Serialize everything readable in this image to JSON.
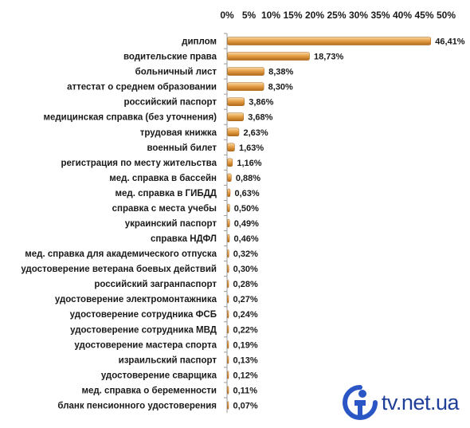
{
  "chart_data": {
    "type": "bar",
    "orientation": "horizontal",
    "categories": [
      "диплом",
      "водительские права",
      "больничный лист",
      "аттестат о среднем образовании",
      "российский паспорт",
      "медицинская справка (без уточнения)",
      "трудовая книжка",
      "военный билет",
      "регистрация по месту жительства",
      "мед. справка в бассейн",
      "мед. справка в ГИБДД",
      "справка с места учебы",
      "украинский паспорт",
      "справка НДФЛ",
      "мед. справка для академического отпуска",
      "удостоверение ветерана боевых действий",
      "российский загранпаспорт",
      "удостоверение электромонтажника",
      "удостоверение сотрудника ФСБ",
      "удостоверение сотрудника МВД",
      "удостоверение мастера спорта",
      "израильский паспорт",
      "удостоверение сварщика",
      "мед. справка о беременности",
      "бланк пенсионного удостоверения"
    ],
    "values": [
      46.41,
      18.73,
      8.38,
      8.3,
      3.86,
      3.68,
      2.63,
      1.63,
      1.16,
      0.88,
      0.63,
      0.5,
      0.49,
      0.46,
      0.32,
      0.3,
      0.28,
      0.27,
      0.24,
      0.22,
      0.19,
      0.13,
      0.12,
      0.11,
      0.07
    ],
    "value_labels": [
      "46,41%",
      "18,73%",
      "8,38%",
      "8,30%",
      "3,86%",
      "3,68%",
      "2,63%",
      "1,63%",
      "1,16%",
      "0,88%",
      "0,63%",
      "0,50%",
      "0,49%",
      "0,46%",
      "0,32%",
      "0,30%",
      "0,28%",
      "0,27%",
      "0,24%",
      "0,22%",
      "0,19%",
      "0,13%",
      "0,12%",
      "0,11%",
      "0,07%"
    ],
    "xlim": [
      0,
      50
    ],
    "xticks": [
      "0%",
      "5%",
      "10%",
      "15%",
      "20%",
      "25%",
      "30%",
      "35%",
      "40%",
      "45%",
      "50%"
    ],
    "x_axis_position": "top",
    "grid": false,
    "legend": "none",
    "bar_color": "#e39a3c"
  },
  "logo": {
    "text": "tv.net.ua",
    "color": "#1f3f99",
    "icon": "person-circle-logo-icon"
  }
}
